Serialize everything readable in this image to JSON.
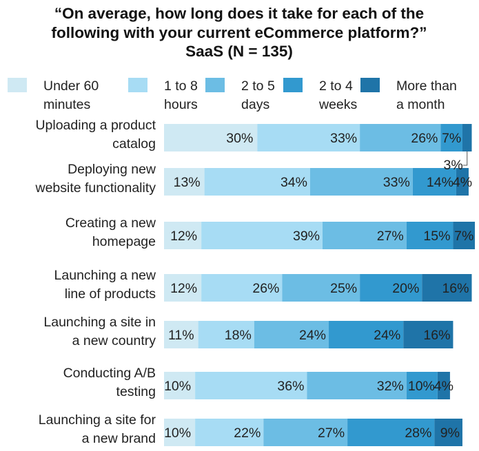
{
  "chart_data": {
    "type": "bar",
    "orientation": "horizontal",
    "stacked": true,
    "title_lines": [
      "“On average, how long does it take for each of the",
      "following with your current eCommerce platform?”",
      "SaaS (N = 135)"
    ],
    "legend_placement": "top",
    "legend": [
      {
        "lines": [
          "Under 60",
          "minutes"
        ],
        "color": "#cfe9f3"
      },
      {
        "lines": [
          "1 to 8",
          "hours"
        ],
        "color": "#a7dcf4"
      },
      {
        "lines": [
          "2 to 5",
          "days"
        ],
        "color": "#6cbde4"
      },
      {
        "lines": [
          "2 to 4",
          "weeks"
        ],
        "color": "#3299cf"
      },
      {
        "lines": [
          "More than",
          "a month"
        ],
        "color": "#1f74a8"
      }
    ],
    "categories": [
      {
        "lines": [
          "Uploading a product",
          "catalog"
        ]
      },
      {
        "lines": [
          "Deploying new",
          "website functionality"
        ]
      },
      {
        "lines": [
          "Creating a new",
          "homepage"
        ]
      },
      {
        "lines": [
          "Launching a new",
          "line of products"
        ]
      },
      {
        "lines": [
          "Launching a site in",
          "a new country"
        ]
      },
      {
        "lines": [
          "Conducting A/B",
          "testing"
        ]
      },
      {
        "lines": [
          "Launching a site for",
          "a new brand"
        ]
      }
    ],
    "series": [
      {
        "name": "Under 60 minutes",
        "values": [
          30,
          13,
          12,
          12,
          11,
          10,
          10
        ],
        "labels": [
          "30%",
          "13%",
          "12%",
          "12%",
          "11%",
          "10%",
          "10%"
        ]
      },
      {
        "name": "1 to 8 hours",
        "values": [
          33,
          34,
          39,
          26,
          18,
          36,
          22
        ],
        "labels": [
          "33%",
          "34%",
          "39%",
          "26%",
          "18%",
          "36%",
          "22%"
        ]
      },
      {
        "name": "2 to 5 days",
        "values": [
          26,
          33,
          27,
          25,
          24,
          32,
          27
        ],
        "labels": [
          "26%",
          "33%",
          "27%",
          "25%",
          "24%",
          "32%",
          "27%"
        ]
      },
      {
        "name": "2 to 4 weeks",
        "values": [
          7,
          14,
          15,
          20,
          24,
          10,
          28
        ],
        "labels": [
          "7%",
          "14%",
          "15%",
          "20%",
          "24%",
          "10%",
          "28%"
        ]
      },
      {
        "name": "More than a month",
        "values": [
          3,
          4,
          7,
          16,
          16,
          4,
          9
        ],
        "labels": [
          "3%",
          "4%",
          "7%",
          "16%",
          "16%",
          "4%",
          "9%"
        ]
      }
    ]
  }
}
